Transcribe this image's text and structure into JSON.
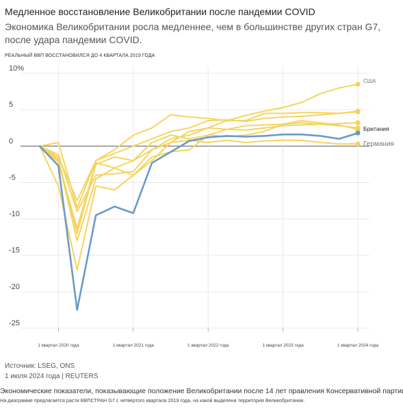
{
  "header": {
    "title": "Медленное восстановление Великобритании после пандемии COVID",
    "subtitle": "Экономика Великобритании росла медленнее, чем в большинстве других стран G7, после удара пандемии COVID.",
    "kicker": "РЕАЛЬНЫЙ ВВП ВОССТАНОВИЛСЯ ДО 4 КВАРТАЛА 2019 ГОДА"
  },
  "footer": {
    "source": "Источник: LSEG, ONS",
    "date": "1 июля 2024 года | REUTERS",
    "caption_line1": "Экономические показатели, показывающие положение Великобритании после 14 лет правления Консервативной партии",
    "caption_line2": "На диаграмме предлагается расти ВВПСТРАН G7 с четвертого квартала 2019 года, на какой выделена территория Великобритании."
  },
  "colors": {
    "uk": "#6b9ac4",
    "other": "#f5d45e",
    "zero_line": "#555555",
    "grid": "#e4e4e4"
  },
  "chart_data": {
    "type": "line",
    "ylim": [
      -25,
      10
    ],
    "y_ticks": [
      10,
      5,
      0,
      -5,
      -10,
      -15,
      -20,
      -25
    ],
    "y_tick_labels": [
      "10%",
      "5",
      "0",
      "-5",
      "-10",
      "-15",
      "-20",
      "-25"
    ],
    "x_ticks": [
      {
        "label": "1 квартал 2020 года",
        "x": 1
      },
      {
        "label": "1 квартал 2021 года",
        "x": 5
      },
      {
        "label": "1 квартал 2022 года",
        "x": 9
      },
      {
        "label": "1 квартал 2023 года",
        "x": 13
      },
      {
        "label": "1 квартал 2024 года",
        "x": 17
      }
    ],
    "x": [
      0,
      1,
      2,
      3,
      4,
      5,
      6,
      7,
      8,
      9,
      10,
      11,
      12,
      13,
      14,
      15,
      16,
      17
    ],
    "series": [
      {
        "name": "США",
        "highlight": false,
        "label_visible": true,
        "values": [
          0,
          0.5,
          -8.5,
          -2.0,
          -0.5,
          1.5,
          2.5,
          4.3,
          4.0,
          3.8,
          3.5,
          4.2,
          4.8,
          5.3,
          6.0,
          7.2,
          8.0,
          8.5
        ]
      },
      {
        "name": "Германия",
        "highlight": false,
        "label_visible": true,
        "values": [
          0,
          -2.2,
          -11.3,
          -2.3,
          -3.0,
          -2.0,
          -0.5,
          0.5,
          0.8,
          0.5,
          0.8,
          0.5,
          0.7,
          0.8,
          0.8,
          0.5,
          0.3,
          0.3
        ]
      },
      {
        "name": "",
        "highlight": false,
        "label_visible": false,
        "values": [
          0,
          -1.5,
          -7.5,
          -2.0,
          -1.0,
          0.0,
          1.0,
          2.0,
          2.5,
          3.5,
          3.6,
          3.4,
          3.8,
          4.0,
          4.1,
          4.3,
          4.5,
          4.8
        ]
      },
      {
        "name": "",
        "highlight": false,
        "label_visible": false,
        "values": [
          0,
          -1.2,
          -9.0,
          -4.0,
          -3.8,
          -3.5,
          -0.5,
          1.0,
          1.5,
          2.5,
          3.5,
          3.5,
          4.5,
          4.5,
          4.6,
          4.6,
          4.5,
          4.7
        ]
      },
      {
        "name": "",
        "highlight": false,
        "label_visible": false,
        "values": [
          0,
          -1.8,
          -12.0,
          -2.5,
          -1.5,
          -2.0,
          0.5,
          1.5,
          1.0,
          1.5,
          1.3,
          1.5,
          2.0,
          3.0,
          3.2,
          3.0,
          2.8,
          2.5
        ]
      },
      {
        "name": "",
        "highlight": false,
        "label_visible": false,
        "values": [
          0,
          -2.0,
          -13.0,
          -4.5,
          -3.0,
          -4.0,
          -1.5,
          -0.8,
          -0.5,
          1.5,
          2.3,
          2.8,
          2.9,
          3.0,
          3.5,
          3.2,
          2.9,
          2.3
        ]
      },
      {
        "name": "",
        "highlight": false,
        "label_visible": false,
        "values": [
          0,
          -5.5,
          -17.0,
          -5.5,
          -6.0,
          -4.0,
          -2.0,
          0.5,
          2.0,
          2.5,
          2.3,
          2.2,
          2.5,
          2.8,
          2.9,
          3.0,
          3.1,
          3.2
        ]
      },
      {
        "name": "Британия",
        "highlight": true,
        "label_visible": true,
        "values": [
          0,
          -2.7,
          -22.5,
          -9.5,
          -8.3,
          -9.2,
          -2.3,
          -0.8,
          0.7,
          1.2,
          1.4,
          1.3,
          1.4,
          1.6,
          1.6,
          1.4,
          1.0,
          1.8
        ]
      }
    ]
  }
}
